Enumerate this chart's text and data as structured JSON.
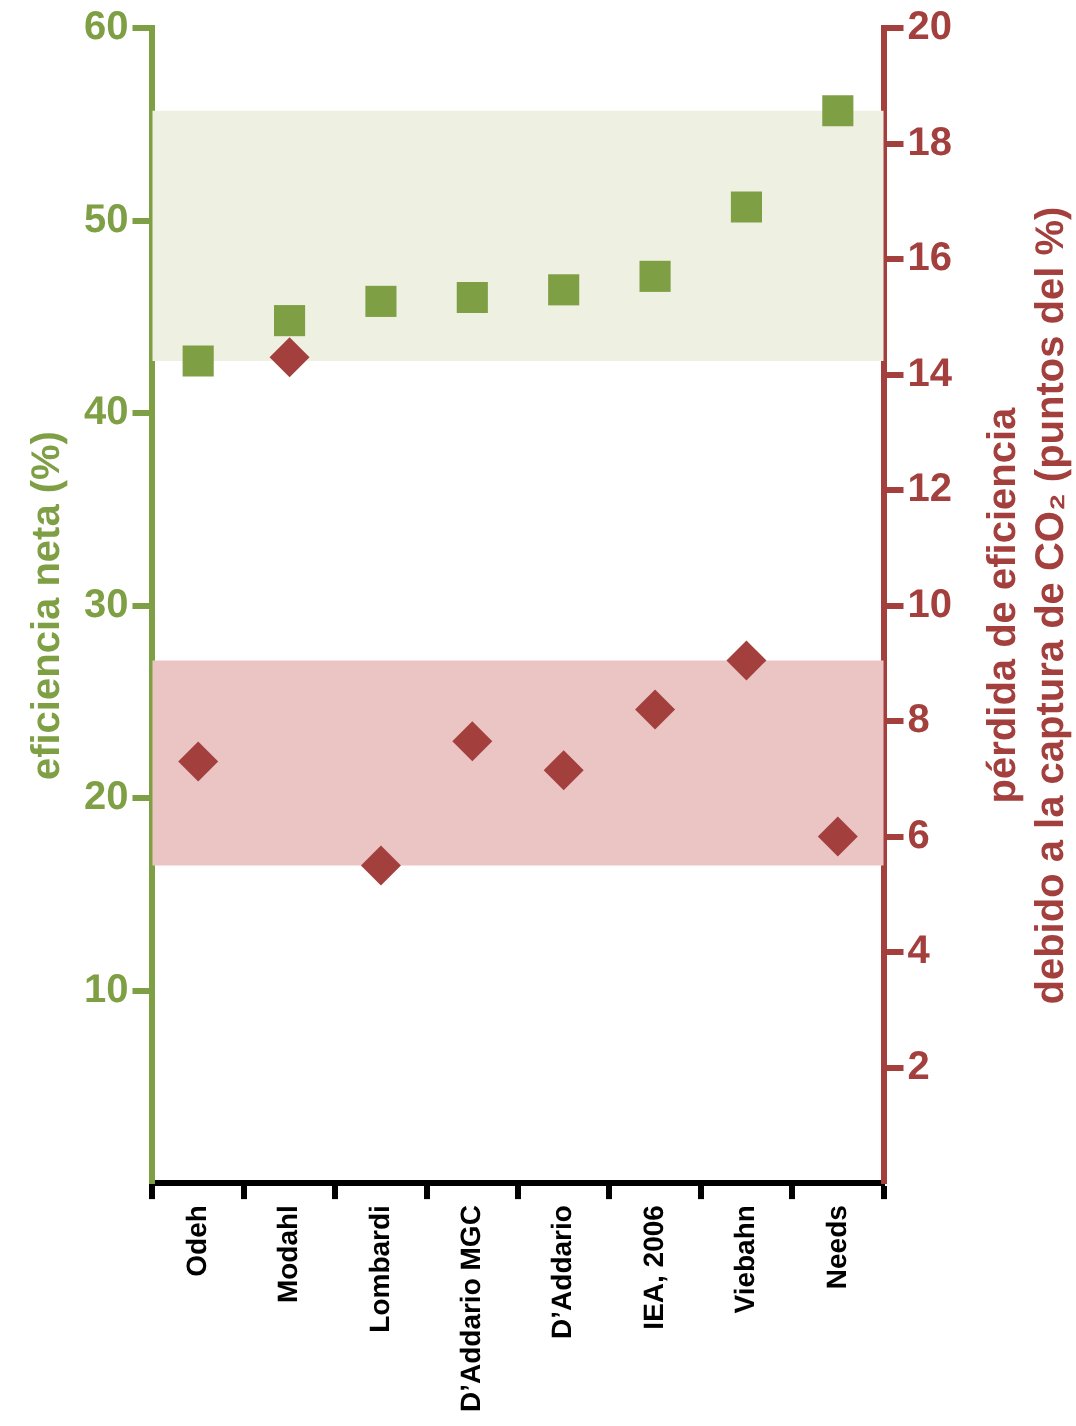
{
  "chart_data": {
    "type": "scatter",
    "ylabel": "eficiencia neta (%)",
    "y2label": "pérdida de eficiencia\ndebido a la captura de CO₂ (puntos del %)",
    "categories": [
      "Odeh",
      "Modahl",
      "Lombardi",
      "D’Addario MGC",
      "D’Addario",
      "IEA, 2006",
      "Viebahn",
      "Needs"
    ],
    "series": [
      {
        "color": "#7f9f45",
        "marker": "square",
        "values": [
          42.7,
          44.8,
          45.8,
          46.0,
          46.4,
          47.1,
          50.7,
          55.7
        ]
      },
      {
        "color": "#a3403e",
        "marker": "diamond",
        "axis": "y2",
        "values": [
          7.3,
          14.3,
          5.5,
          7.65,
          7.15,
          8.2,
          9.05,
          6.0
        ]
      }
    ],
    "ylim": [
      0,
      60
    ],
    "yticks": [
      10,
      20,
      30,
      40,
      50,
      60
    ],
    "y2lim": [
      0,
      20
    ],
    "y2ticks": [
      2,
      4,
      6,
      8,
      10,
      12,
      14,
      16,
      18,
      20
    ],
    "bands": [
      {
        "axis": "y",
        "from": 42.7,
        "to": 55.7,
        "color": "#eef0e2"
      },
      {
        "axis": "y2",
        "from": 5.5,
        "to": 9.05,
        "color": "#ebc4c4"
      }
    ],
    "grid": false,
    "legend": false
  }
}
